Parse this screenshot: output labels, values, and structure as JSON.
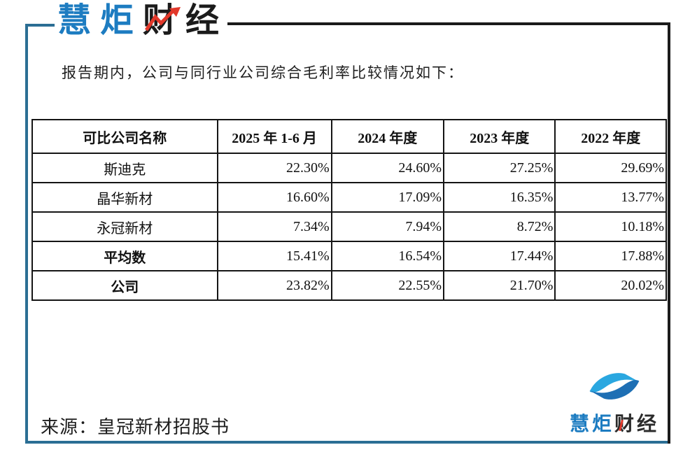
{
  "brand": {
    "blue_part": "慧炬",
    "dark_part": "财经",
    "full_name": "慧炬财经"
  },
  "intro_text": "报告期内，公司与同行业公司综合毛利率比较情况如下：",
  "table": {
    "columns": [
      "可比公司名称",
      "2025 年 1-6 月",
      "2024 年度",
      "2023 年度",
      "2022 年度"
    ],
    "rows": [
      {
        "name": "斯迪克",
        "bold": false,
        "values": [
          "22.30%",
          "24.60%",
          "27.25%",
          "29.69%"
        ]
      },
      {
        "name": "晶华新材",
        "bold": false,
        "values": [
          "16.60%",
          "17.09%",
          "16.35%",
          "13.77%"
        ]
      },
      {
        "name": "永冠新材",
        "bold": false,
        "values": [
          "7.34%",
          "7.94%",
          "8.72%",
          "10.18%"
        ]
      },
      {
        "name": "平均数",
        "bold": true,
        "values": [
          "15.41%",
          "16.54%",
          "17.44%",
          "17.88%"
        ]
      },
      {
        "name": "公司",
        "bold": true,
        "values": [
          "23.82%",
          "22.55%",
          "21.70%",
          "20.02%"
        ]
      }
    ]
  },
  "chart_data": {
    "type": "table",
    "title": "公司与同行业公司综合毛利率比较",
    "columns": [
      "可比公司名称",
      "2025 年 1-6 月",
      "2024 年度",
      "2023 年度",
      "2022 年度"
    ],
    "series": [
      {
        "name": "斯迪克",
        "values": [
          22.3,
          24.6,
          27.25,
          29.69
        ]
      },
      {
        "name": "晶华新材",
        "values": [
          16.6,
          17.09,
          16.35,
          13.77
        ]
      },
      {
        "name": "永冠新材",
        "values": [
          7.34,
          7.94,
          8.72,
          10.18
        ]
      },
      {
        "name": "平均数",
        "values": [
          15.41,
          16.54,
          17.44,
          17.88
        ]
      },
      {
        "name": "公司",
        "values": [
          23.82,
          22.55,
          21.7,
          20.02
        ]
      }
    ],
    "unit": "%"
  },
  "source_text": "来源：皇冠新材招股书",
  "colors": {
    "brand_blue": "#1d7cc1",
    "frame_blue": "#2b6e94",
    "frame_black": "#1b1b1b",
    "accent_red": "#e2382a",
    "icon_light_blue": "#2aa7e0",
    "icon_dark_blue": "#1e6fb4"
  }
}
